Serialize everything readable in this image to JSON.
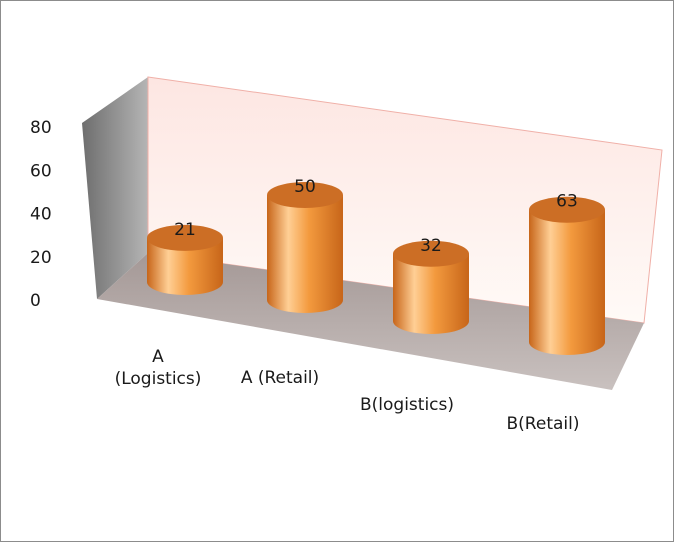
{
  "chart_data": {
    "type": "bar",
    "variant": "3d-cylinder",
    "title": "",
    "xlabel": "",
    "ylabel": "",
    "categories": [
      "A (Logistics)",
      "A (Retail)",
      "B(logistics)",
      "B(Retail)"
    ],
    "category_label_lines": [
      [
        "A",
        "(Logistics)"
      ],
      [
        "A (Retail)"
      ],
      [
        "B(logistics)"
      ],
      [
        "B(Retail)"
      ]
    ],
    "values": [
      21,
      50,
      32,
      63
    ],
    "data_labels": [
      "21",
      "50",
      "32",
      "63"
    ],
    "ylim": [
      0,
      80
    ],
    "y_ticks": [
      0,
      20,
      40,
      60,
      80
    ],
    "y_tick_labels": [
      "0",
      "20",
      "40",
      "60",
      "80"
    ],
    "grid": false,
    "legend": "none",
    "colors": {
      "bar": "#f39a3e",
      "bar_light": "#ffcf95",
      "bar_dark": "#c76519",
      "bar_top": "#cc6e25",
      "back_wall": "#fdf0ec",
      "back_wall_edge": "#f0b0a8",
      "side_wall": "#8a8a8a",
      "floor": "#b3aaa7"
    }
  }
}
